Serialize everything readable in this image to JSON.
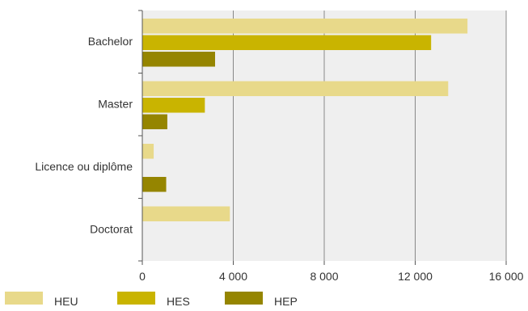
{
  "chart_data": {
    "type": "bar",
    "orientation": "horizontal",
    "categories": [
      "Bachelor",
      "Master",
      "Licence ou diplôme",
      "Doctorat"
    ],
    "series": [
      {
        "name": "HEU",
        "color": "#e8d98a",
        "values": [
          14300,
          13450,
          500,
          3850
        ]
      },
      {
        "name": "HES",
        "color": "#c9b400",
        "values": [
          12700,
          2750,
          0,
          0
        ]
      },
      {
        "name": "HEP",
        "color": "#958500",
        "values": [
          3200,
          1100,
          1050,
          0
        ]
      }
    ],
    "xlim": [
      0,
      16000
    ],
    "xticks": [
      0,
      4000,
      8000,
      12000,
      16000
    ],
    "xtick_labels": [
      "0",
      "4 000",
      "8 000",
      "12 000",
      "16 000"
    ],
    "grid": true,
    "legend_position": "bottom",
    "background": "#efefef"
  }
}
